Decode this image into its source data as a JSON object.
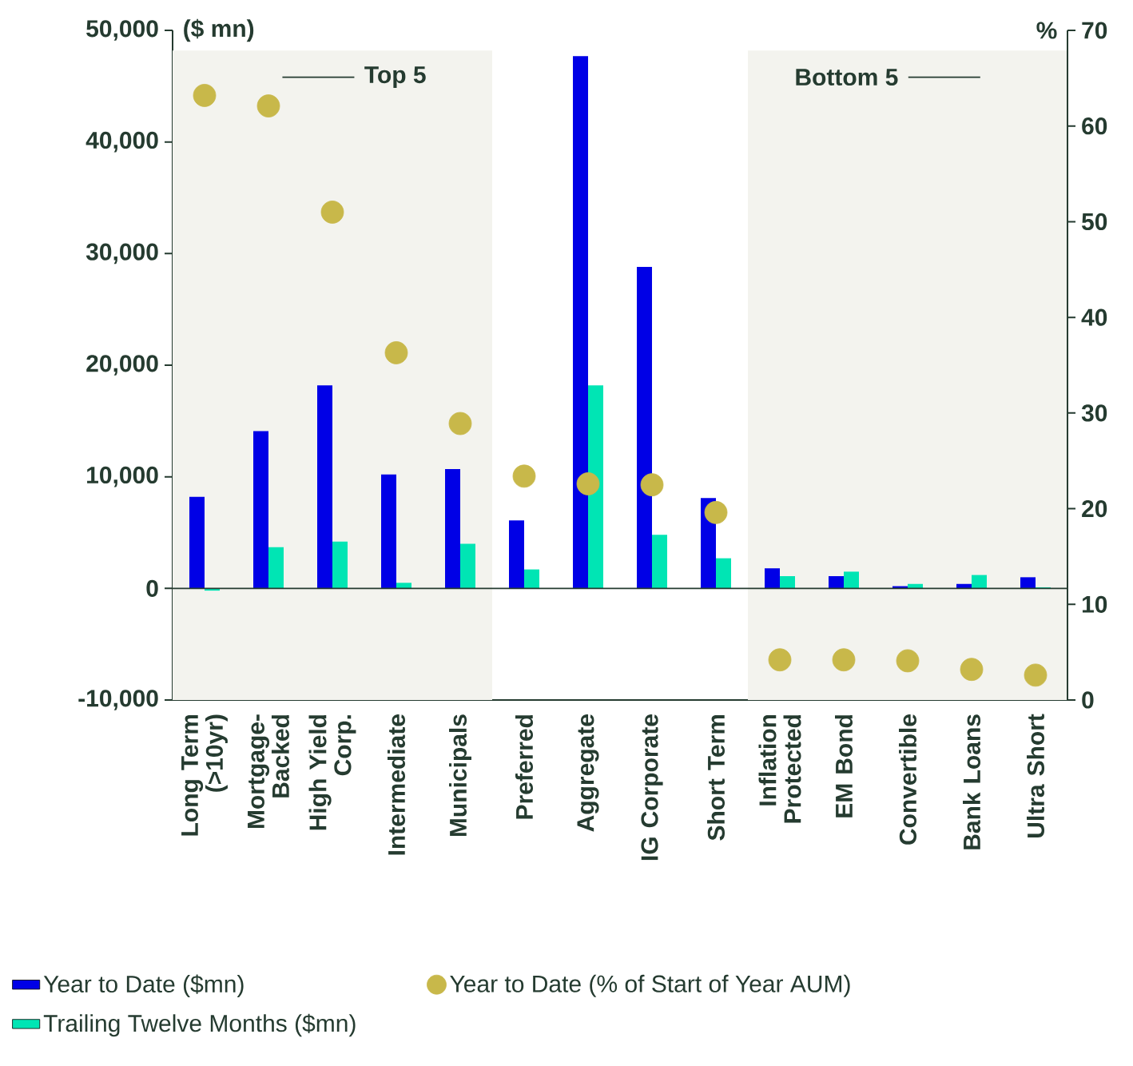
{
  "chart_data": {
    "type": "bar",
    "ylabel": "($ mn)",
    "y2label": "%",
    "categories": [
      "Long Term (>10yr)",
      "Mortgage-Backed",
      "High Yield Corp.",
      "Intermediate",
      "Municipals",
      "Preferred",
      "Aggregate",
      "IG Corporate",
      "Short Term",
      "Inflation Protected",
      "EM Bond",
      "Convertible",
      "Bank Loans",
      "Ultra Short"
    ],
    "series": [
      {
        "name": "Year to Date ($mn)",
        "color": "#0000e6",
        "values": [
          8200,
          14100,
          18200,
          10200,
          10700,
          6100,
          47700,
          28800,
          8100,
          1800,
          1100,
          200,
          400,
          1000
        ]
      },
      {
        "name": "Trailing Twelve Months ($mn)",
        "color": "#00e5b4",
        "values": [
          -200,
          3700,
          4200,
          500,
          4000,
          1700,
          18200,
          4800,
          2700,
          1100,
          1500,
          400,
          1200,
          100
        ]
      },
      {
        "name": "Year to Date (% of Start of Year AUM)",
        "type": "scatter",
        "axis": "y2",
        "marker": "circle",
        "color": "#c8b84a",
        "values": [
          63.2,
          62.1,
          51.0,
          36.3,
          28.9,
          23.4,
          22.6,
          22.5,
          19.6,
          4.2,
          4.2,
          4.1,
          3.2,
          2.6
        ]
      }
    ],
    "ylim": [
      -10000,
      50000
    ],
    "yticks": [
      {
        "value": -10000,
        "label": "-10,000"
      },
      {
        "value": 0,
        "label": "0"
      },
      {
        "value": 10000,
        "label": "10,000"
      },
      {
        "value": 20000,
        "label": "20,000"
      },
      {
        "value": 30000,
        "label": "30,000"
      },
      {
        "value": 40000,
        "label": "40,000"
      },
      {
        "value": 50000,
        "label": "50,000"
      }
    ],
    "y2lim": [
      0,
      70
    ],
    "y2ticks": [
      0,
      10,
      20,
      30,
      40,
      50,
      60,
      70
    ],
    "bands": [
      {
        "axis": "x",
        "from": "Long Term (>10yr)",
        "to": "Municipals",
        "label": "Top 5",
        "color": "#f3f3ee"
      },
      {
        "axis": "x",
        "from": "Inflation Protected",
        "to": "Ultra Short",
        "label": "Bottom 5",
        "color": "#f3f3ee"
      }
    ],
    "ref_lines": [
      {
        "axis": "y",
        "value": 0
      }
    ],
    "legend": "bottom"
  }
}
